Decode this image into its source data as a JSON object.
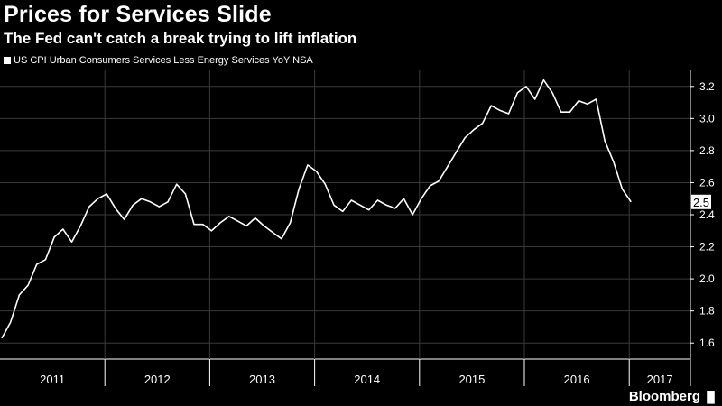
{
  "title": "Prices for Services Slide",
  "subtitle": "The Fed can't catch a break trying to lift inflation",
  "legend": "US CPI Urban Consumers Services Less Energy Services YoY NSA",
  "brand": "Bloomberg",
  "colors": {
    "background": "#000000",
    "line": "#ffffff",
    "grid": "#3a3a3a",
    "text": "#ffffff"
  },
  "chart_data": {
    "type": "line",
    "title": "Prices for Services Slide",
    "subtitle": "The Fed can't catch a break trying to lift inflation",
    "xlabel": "",
    "ylabel": "",
    "ylim": [
      1.5,
      3.3
    ],
    "yticks": [
      1.6,
      1.8,
      2.0,
      2.2,
      2.4,
      2.6,
      2.8,
      3.0,
      3.2
    ],
    "ytick_labels": [
      "1.6",
      "1.8",
      "2.0",
      "2.2",
      "2.4",
      "2.6",
      "2.8",
      "3.0",
      "3.2"
    ],
    "y_axis_side": "right",
    "x_start": "2011-01",
    "xlim": [
      "2011-01",
      "2017-07"
    ],
    "xtick_labels": [
      "2011",
      "2012",
      "2013",
      "2014",
      "2015",
      "2016",
      "2017"
    ],
    "grid": true,
    "legend_position": "top-left",
    "last_value_label": "2.5",
    "series": [
      {
        "name": "US CPI Urban Consumers Services Less Energy Services YoY NSA",
        "values": [
          1.63,
          1.73,
          1.9,
          1.96,
          2.09,
          2.12,
          2.26,
          2.31,
          2.23,
          2.33,
          2.45,
          2.5,
          2.53,
          2.44,
          2.37,
          2.46,
          2.5,
          2.48,
          2.45,
          2.48,
          2.59,
          2.53,
          2.34,
          2.34,
          2.3,
          2.35,
          2.39,
          2.36,
          2.33,
          2.38,
          2.33,
          2.29,
          2.25,
          2.35,
          2.56,
          2.71,
          2.67,
          2.59,
          2.46,
          2.42,
          2.49,
          2.46,
          2.43,
          2.49,
          2.46,
          2.44,
          2.5,
          2.4,
          2.5,
          2.58,
          2.61,
          2.7,
          2.79,
          2.88,
          2.93,
          2.97,
          3.08,
          3.05,
          3.03,
          3.16,
          3.2,
          3.12,
          3.24,
          3.16,
          3.04,
          3.04,
          3.11,
          3.09,
          3.12,
          2.86,
          2.73,
          2.56,
          2.48
        ]
      }
    ]
  }
}
